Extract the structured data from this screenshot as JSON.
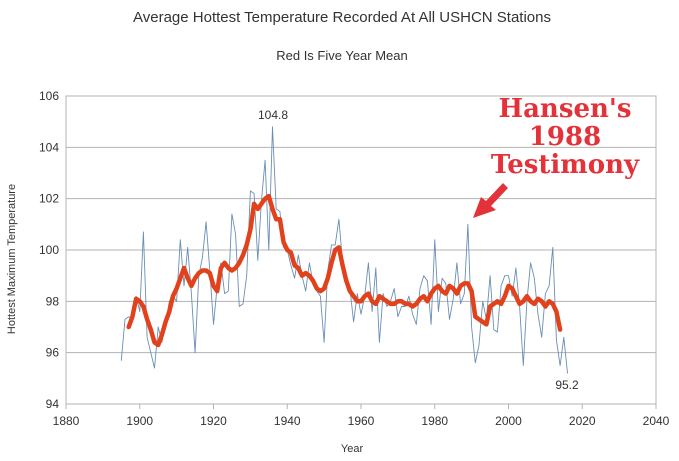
{
  "chart_data": {
    "type": "line",
    "title": "Average Hottest Temperature Recorded At All USHCN  Stations",
    "subtitle": "Red Is Five Year Mean",
    "xlabel": "Year",
    "ylabel": "Hottest Maximum Temperature",
    "xlim": [
      1880,
      2040
    ],
    "ylim": [
      94,
      106
    ],
    "xticks": [
      1880,
      1900,
      1920,
      1940,
      1960,
      1980,
      2000,
      2020,
      2040
    ],
    "yticks": [
      94,
      96,
      98,
      100,
      102,
      104,
      106
    ],
    "grid": "horizontal",
    "legend": "none",
    "series": [
      {
        "color": "#6a8fb5",
        "x": [
          1895,
          1896,
          1897,
          1898,
          1899,
          1900,
          1901,
          1902,
          1903,
          1904,
          1905,
          1906,
          1907,
          1908,
          1909,
          1910,
          1911,
          1912,
          1913,
          1914,
          1915,
          1916,
          1917,
          1918,
          1919,
          1920,
          1921,
          1922,
          1923,
          1924,
          1925,
          1926,
          1927,
          1928,
          1929,
          1930,
          1931,
          1932,
          1933,
          1934,
          1935,
          1936,
          1937,
          1938,
          1939,
          1940,
          1941,
          1942,
          1943,
          1944,
          1945,
          1946,
          1947,
          1948,
          1949,
          1950,
          1951,
          1952,
          1953,
          1954,
          1955,
          1956,
          1957,
          1958,
          1959,
          1960,
          1961,
          1962,
          1963,
          1964,
          1965,
          1966,
          1967,
          1968,
          1969,
          1970,
          1971,
          1972,
          1973,
          1974,
          1975,
          1976,
          1977,
          1978,
          1979,
          1980,
          1981,
          1982,
          1983,
          1984,
          1985,
          1986,
          1987,
          1988,
          1989,
          1990,
          1991,
          1992,
          1993,
          1994,
          1995,
          1996,
          1997,
          1998,
          1999,
          2000,
          2001,
          2002,
          2003,
          2004,
          2005,
          2006,
          2007,
          2008,
          2009,
          2010,
          2011,
          2012,
          2013,
          2014,
          2015,
          2016
        ],
        "y": [
          95.7,
          97.3,
          97.4,
          97.3,
          98.2,
          97.6,
          100.7,
          96.6,
          96.0,
          95.4,
          97.0,
          96.4,
          97.1,
          98.0,
          98.2,
          98.0,
          100.4,
          98.6,
          100.1,
          98.3,
          96.0,
          99.0,
          99.7,
          101.1,
          99.2,
          97.1,
          98.6,
          99.5,
          98.3,
          98.4,
          101.4,
          100.6,
          97.8,
          97.9,
          99.0,
          102.3,
          102.2,
          99.6,
          101.9,
          103.5,
          100.0,
          104.8,
          101.6,
          101.5,
          100.1,
          100.0,
          99.4,
          98.9,
          99.8,
          99.0,
          98.4,
          99.5,
          98.7,
          98.4,
          98.2,
          96.4,
          99.2,
          100.2,
          100.2,
          101.2,
          99.5,
          98.8,
          98.5,
          97.2,
          98.3,
          97.5,
          98.2,
          99.5,
          97.6,
          99.3,
          96.4,
          98.3,
          97.8,
          98.0,
          98.5,
          97.4,
          97.8,
          97.8,
          98.2,
          97.5,
          97.1,
          98.5,
          99.0,
          98.8,
          97.1,
          100.4,
          97.6,
          98.9,
          98.7,
          97.3,
          98.1,
          99.5,
          97.9,
          98.3,
          101.0,
          97.0,
          95.6,
          96.3,
          98.0,
          97.3,
          99.0,
          96.9,
          96.8,
          98.6,
          99.0,
          99.0,
          98.2,
          99.3,
          97.8,
          95.5,
          98.0,
          99.5,
          98.9,
          97.5,
          96.6,
          98.3,
          98.6,
          100.1,
          96.5,
          95.5,
          96.6,
          95.2
        ]
      },
      {
        "color": "#e2421b",
        "x": [
          1897,
          1898,
          1899,
          1900,
          1901,
          1902,
          1903,
          1904,
          1905,
          1906,
          1907,
          1908,
          1909,
          1910,
          1911,
          1912,
          1913,
          1914,
          1915,
          1916,
          1917,
          1918,
          1919,
          1920,
          1921,
          1922,
          1923,
          1924,
          1925,
          1926,
          1927,
          1928,
          1929,
          1930,
          1931,
          1932,
          1933,
          1934,
          1935,
          1936,
          1937,
          1938,
          1939,
          1940,
          1941,
          1942,
          1943,
          1944,
          1945,
          1946,
          1947,
          1948,
          1949,
          1950,
          1951,
          1952,
          1953,
          1954,
          1955,
          1956,
          1957,
          1958,
          1959,
          1960,
          1961,
          1962,
          1963,
          1964,
          1965,
          1966,
          1967,
          1968,
          1969,
          1970,
          1971,
          1972,
          1973,
          1974,
          1975,
          1976,
          1977,
          1978,
          1979,
          1980,
          1981,
          1982,
          1983,
          1984,
          1985,
          1986,
          1987,
          1988,
          1989,
          1990,
          1991,
          1992,
          1993,
          1994,
          1995,
          1996,
          1997,
          1998,
          1999,
          2000,
          2001,
          2002,
          2003,
          2004,
          2005,
          2006,
          2007,
          2008,
          2009,
          2010,
          2011,
          2012,
          2013,
          2014
        ],
        "y": [
          97.0,
          97.4,
          98.1,
          98.0,
          97.8,
          97.3,
          96.9,
          96.4,
          96.3,
          96.7,
          97.2,
          97.6,
          98.2,
          98.5,
          98.9,
          99.3,
          98.9,
          98.6,
          98.9,
          99.1,
          99.2,
          99.2,
          99.1,
          98.6,
          98.4,
          99.3,
          99.5,
          99.3,
          99.2,
          99.3,
          99.5,
          99.8,
          100.2,
          100.8,
          101.8,
          101.6,
          101.8,
          102.0,
          102.1,
          101.6,
          101.2,
          101.2,
          100.3,
          100.0,
          99.9,
          99.4,
          99.3,
          99.0,
          99.1,
          99.0,
          98.8,
          98.5,
          98.4,
          98.5,
          98.9,
          99.5,
          100.0,
          100.1,
          99.4,
          98.8,
          98.4,
          98.2,
          98.0,
          98.0,
          98.2,
          98.3,
          98.0,
          97.9,
          98.2,
          98.1,
          98.0,
          97.9,
          97.9,
          98.0,
          98.0,
          97.9,
          97.9,
          97.8,
          97.9,
          98.1,
          98.2,
          98.0,
          98.3,
          98.5,
          98.6,
          98.4,
          98.3,
          98.6,
          98.5,
          98.3,
          98.6,
          98.7,
          98.7,
          98.4,
          97.4,
          97.3,
          97.2,
          97.1,
          97.8,
          97.9,
          98.0,
          97.9,
          98.2,
          98.6,
          98.5,
          98.2,
          97.9,
          98.0,
          98.2,
          98.0,
          97.9,
          98.1,
          98.0,
          97.8,
          98.0,
          97.9,
          97.6,
          96.9
        ]
      }
    ],
    "annotations": {
      "peak": "104.8",
      "final": "95.2",
      "callout_lines": [
        "Hansen's",
        "1988",
        "Testimony"
      ],
      "callout_color": "#e3323a"
    }
  }
}
